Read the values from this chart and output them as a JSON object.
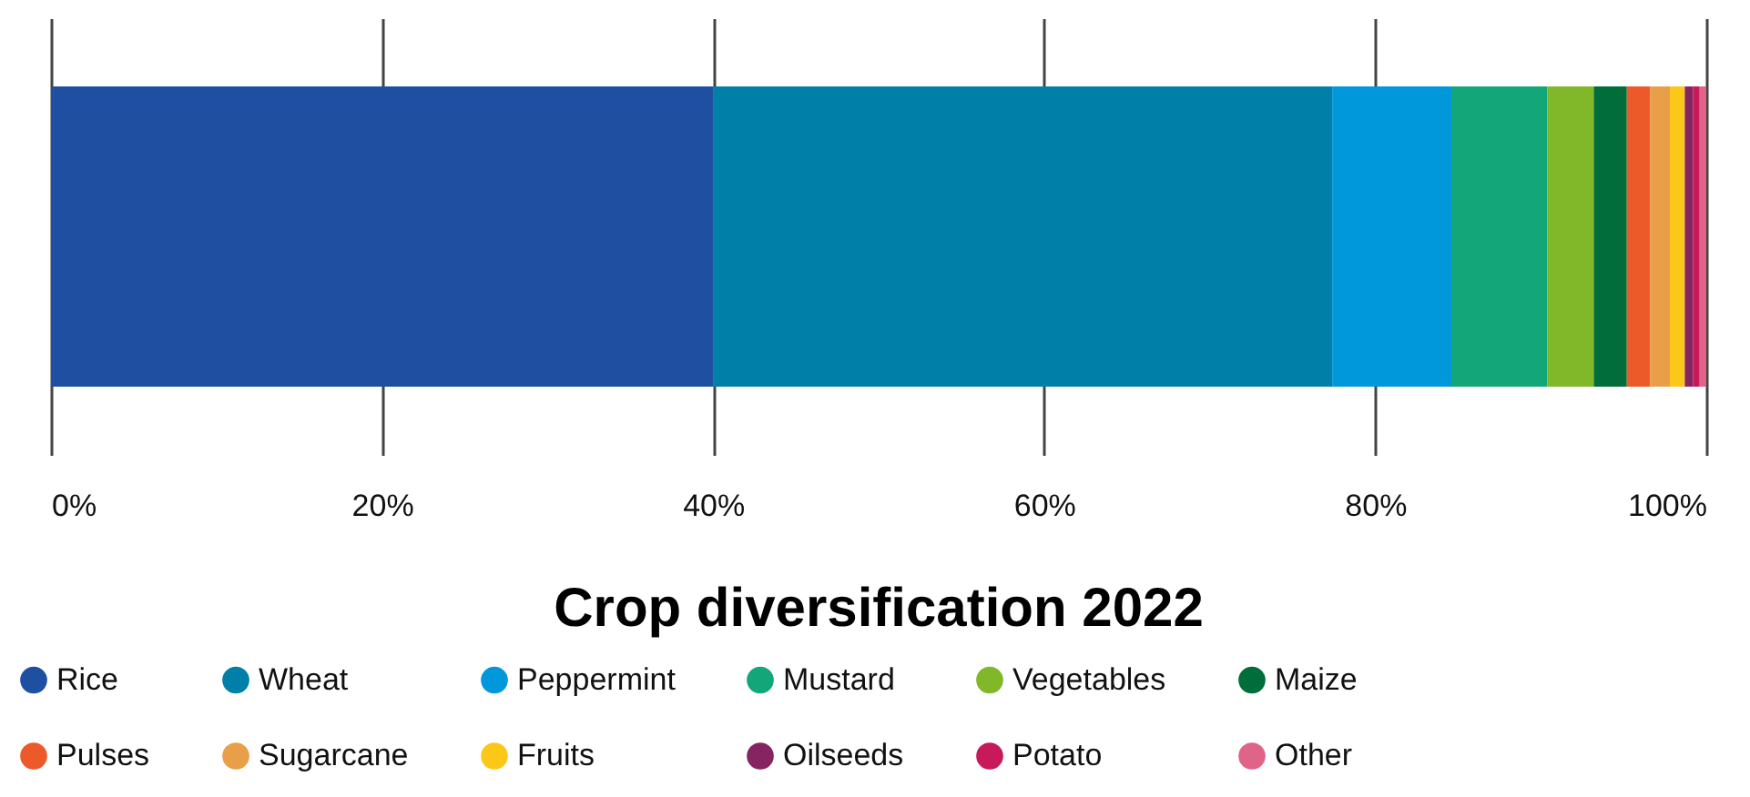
{
  "chart_data": {
    "type": "bar",
    "title": "Crop diversification 2022",
    "orientation": "horizontal",
    "stacked": true,
    "categories": [
      null
    ],
    "series": [
      {
        "name": "Rice",
        "color": "#1f4fa0",
        "values": [
          40.0
        ]
      },
      {
        "name": "Wheat",
        "color": "#0080a8",
        "values": [
          37.4
        ]
      },
      {
        "name": "Peppermint",
        "color": "#0098db",
        "values": [
          7.2
        ]
      },
      {
        "name": "Mustard",
        "color": "#13a678",
        "values": [
          5.8
        ]
      },
      {
        "name": "Vegetables",
        "color": "#80b82a",
        "values": [
          2.8
        ]
      },
      {
        "name": "Maize",
        "color": "#006d3a",
        "values": [
          2.0
        ]
      },
      {
        "name": "Pulses",
        "color": "#eb5a28",
        "values": [
          1.4
        ]
      },
      {
        "name": "Sugarcane",
        "color": "#e89f48",
        "values": [
          1.2
        ]
      },
      {
        "name": "Fruits",
        "color": "#fbc81a",
        "values": [
          0.9
        ]
      },
      {
        "name": "Oilseeds",
        "color": "#862462",
        "values": [
          0.5
        ]
      },
      {
        "name": "Potato",
        "color": "#c8195a",
        "values": [
          0.4
        ]
      },
      {
        "name": "Other",
        "color": "#e06488",
        "values": [
          0.4
        ]
      }
    ],
    "xlim": [
      0,
      100
    ],
    "xticks": [
      {
        "value": 0,
        "label": "0%"
      },
      {
        "value": 20,
        "label": "20%"
      },
      {
        "value": 40,
        "label": "40%"
      },
      {
        "value": 60,
        "label": "60%"
      },
      {
        "value": 80,
        "label": "80%"
      },
      {
        "value": 100,
        "label": "100%"
      }
    ],
    "grid": "x",
    "legend": "bottom"
  }
}
